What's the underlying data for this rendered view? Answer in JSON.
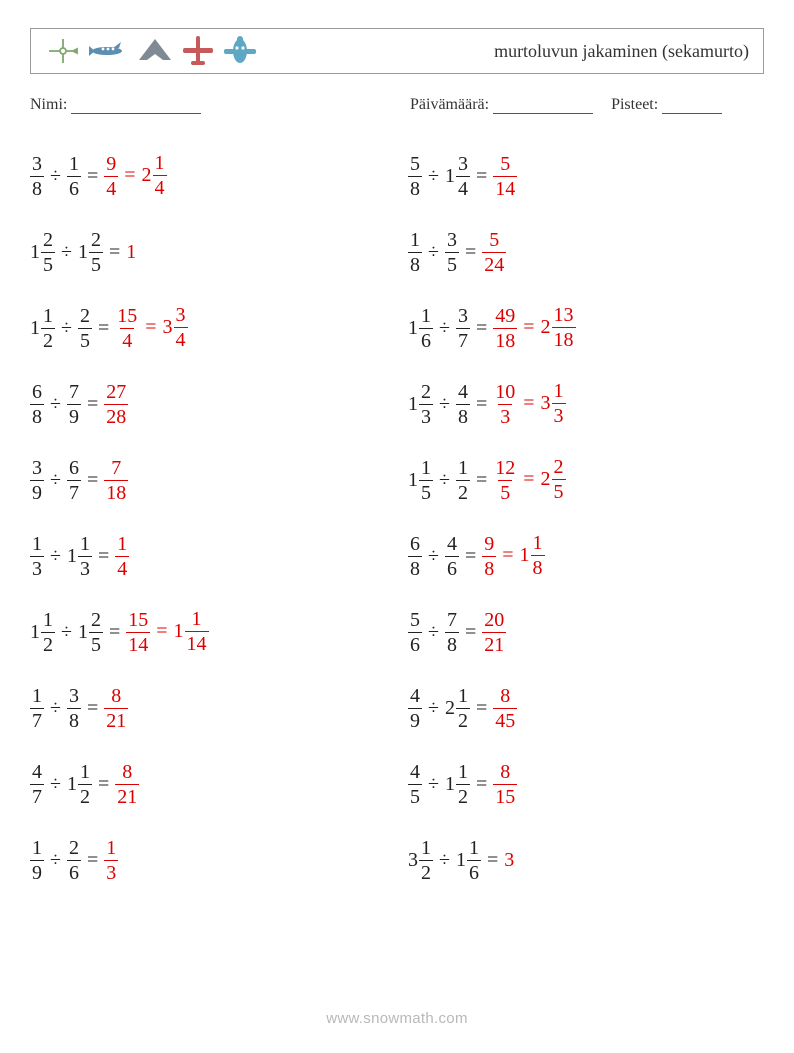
{
  "header": {
    "title": "murtoluvun jakaminen (sekamurto)",
    "plane_colors": [
      "#7fa86f",
      "#5d8fb3",
      "#7f8a94",
      "#c65a5a",
      "#5fa8c4"
    ]
  },
  "labels": {
    "name": "Nimi:",
    "date": "Päivämäärä:",
    "score": "Pisteet:"
  },
  "blanks": {
    "name_w": 130,
    "date_w": 100,
    "score_w": 60
  },
  "font": {
    "body_size": 20,
    "ans_color": "#dd0000"
  },
  "columns": [
    [
      {
        "a": {
          "n": 3,
          "d": 8
        },
        "b": {
          "n": 1,
          "d": 6
        },
        "ans": [
          {
            "n": 9,
            "d": 4
          },
          {
            "w": 2,
            "n": 1,
            "d": 4
          }
        ]
      },
      {
        "a": {
          "w": 1,
          "n": 2,
          "d": 5
        },
        "b": {
          "w": 1,
          "n": 2,
          "d": 5
        },
        "ans": [
          {
            "int": 1
          }
        ]
      },
      {
        "a": {
          "w": 1,
          "n": 1,
          "d": 2
        },
        "b": {
          "n": 2,
          "d": 5
        },
        "ans": [
          {
            "n": 15,
            "d": 4
          },
          {
            "w": 3,
            "n": 3,
            "d": 4
          }
        ]
      },
      {
        "a": {
          "n": 6,
          "d": 8
        },
        "b": {
          "n": 7,
          "d": 9
        },
        "ans": [
          {
            "n": 27,
            "d": 28
          }
        ]
      },
      {
        "a": {
          "n": 3,
          "d": 9
        },
        "b": {
          "n": 6,
          "d": 7
        },
        "ans": [
          {
            "n": 7,
            "d": 18
          }
        ]
      },
      {
        "a": {
          "n": 1,
          "d": 3
        },
        "b": {
          "w": 1,
          "n": 1,
          "d": 3
        },
        "ans": [
          {
            "n": 1,
            "d": 4
          }
        ]
      },
      {
        "a": {
          "w": 1,
          "n": 1,
          "d": 2
        },
        "b": {
          "w": 1,
          "n": 2,
          "d": 5
        },
        "ans": [
          {
            "n": 15,
            "d": 14
          },
          {
            "w": 1,
            "n": 1,
            "d": 14
          }
        ]
      },
      {
        "a": {
          "n": 1,
          "d": 7
        },
        "b": {
          "n": 3,
          "d": 8
        },
        "ans": [
          {
            "n": 8,
            "d": 21
          }
        ]
      },
      {
        "a": {
          "n": 4,
          "d": 7
        },
        "b": {
          "w": 1,
          "n": 1,
          "d": 2
        },
        "ans": [
          {
            "n": 8,
            "d": 21
          }
        ]
      },
      {
        "a": {
          "n": 1,
          "d": 9
        },
        "b": {
          "n": 2,
          "d": 6
        },
        "ans": [
          {
            "n": 1,
            "d": 3
          }
        ]
      }
    ],
    [
      {
        "a": {
          "n": 5,
          "d": 8
        },
        "b": {
          "w": 1,
          "n": 3,
          "d": 4
        },
        "ans": [
          {
            "n": 5,
            "d": 14
          }
        ]
      },
      {
        "a": {
          "n": 1,
          "d": 8
        },
        "b": {
          "n": 3,
          "d": 5
        },
        "ans": [
          {
            "n": 5,
            "d": 24
          }
        ]
      },
      {
        "a": {
          "w": 1,
          "n": 1,
          "d": 6
        },
        "b": {
          "n": 3,
          "d": 7
        },
        "ans": [
          {
            "n": 49,
            "d": 18
          },
          {
            "w": 2,
            "n": 13,
            "d": 18
          }
        ]
      },
      {
        "a": {
          "w": 1,
          "n": 2,
          "d": 3
        },
        "b": {
          "n": 4,
          "d": 8
        },
        "ans": [
          {
            "n": 10,
            "d": 3
          },
          {
            "w": 3,
            "n": 1,
            "d": 3
          }
        ]
      },
      {
        "a": {
          "w": 1,
          "n": 1,
          "d": 5
        },
        "b": {
          "n": 1,
          "d": 2
        },
        "ans": [
          {
            "n": 12,
            "d": 5
          },
          {
            "w": 2,
            "n": 2,
            "d": 5
          }
        ]
      },
      {
        "a": {
          "n": 6,
          "d": 8
        },
        "b": {
          "n": 4,
          "d": 6
        },
        "ans": [
          {
            "n": 9,
            "d": 8
          },
          {
            "w": 1,
            "n": 1,
            "d": 8
          }
        ]
      },
      {
        "a": {
          "n": 5,
          "d": 6
        },
        "b": {
          "n": 7,
          "d": 8
        },
        "ans": [
          {
            "n": 20,
            "d": 21
          }
        ]
      },
      {
        "a": {
          "n": 4,
          "d": 9
        },
        "b": {
          "w": 2,
          "n": 1,
          "d": 2
        },
        "ans": [
          {
            "n": 8,
            "d": 45
          }
        ]
      },
      {
        "a": {
          "n": 4,
          "d": 5
        },
        "b": {
          "w": 1,
          "n": 1,
          "d": 2
        },
        "ans": [
          {
            "n": 8,
            "d": 15
          }
        ]
      },
      {
        "a": {
          "w": 3,
          "n": 1,
          "d": 2
        },
        "b": {
          "w": 1,
          "n": 1,
          "d": 6
        },
        "ans": [
          {
            "int": 3
          }
        ]
      }
    ]
  ],
  "footer": "www.snowmath.com"
}
